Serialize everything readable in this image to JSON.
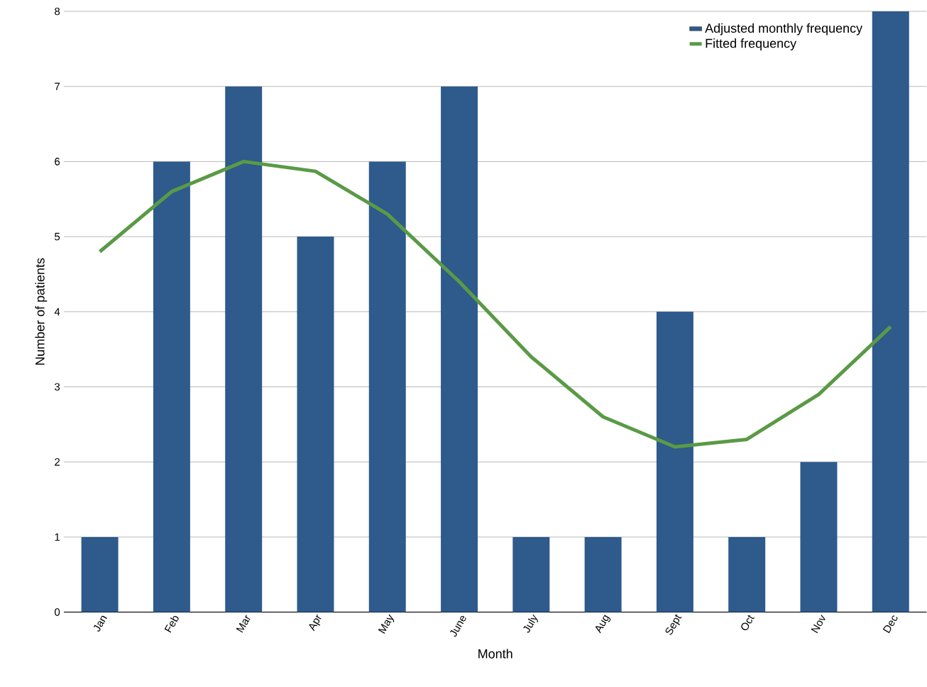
{
  "chart_data": {
    "type": "bar",
    "xlabel": "Month",
    "ylabel": "Number of patients",
    "categories": [
      "Jan",
      "Feb",
      "Mar",
      "Apr",
      "May",
      "June",
      "July",
      "Aug",
      "Sept",
      "Oct",
      "Nov",
      "Dec"
    ],
    "series": [
      {
        "name": "Adjusted monthly frequency",
        "color": "#2e5a8c",
        "values": [
          1,
          6,
          7,
          5,
          6,
          7,
          1,
          1,
          4,
          1,
          2,
          8
        ]
      },
      {
        "name": "Fitted frequency",
        "type": "line",
        "color": "#5a9a46",
        "values": [
          4.8,
          5.6,
          6.0,
          5.87,
          5.3,
          4.4,
          3.4,
          2.6,
          2.2,
          2.3,
          2.9,
          3.8
        ]
      }
    ],
    "ylim": [
      0,
      8
    ],
    "yticks": [
      0,
      1,
      2,
      3,
      4,
      5,
      6,
      7,
      8
    ],
    "grid": "y",
    "legend": "top right",
    "marker": "none"
  }
}
